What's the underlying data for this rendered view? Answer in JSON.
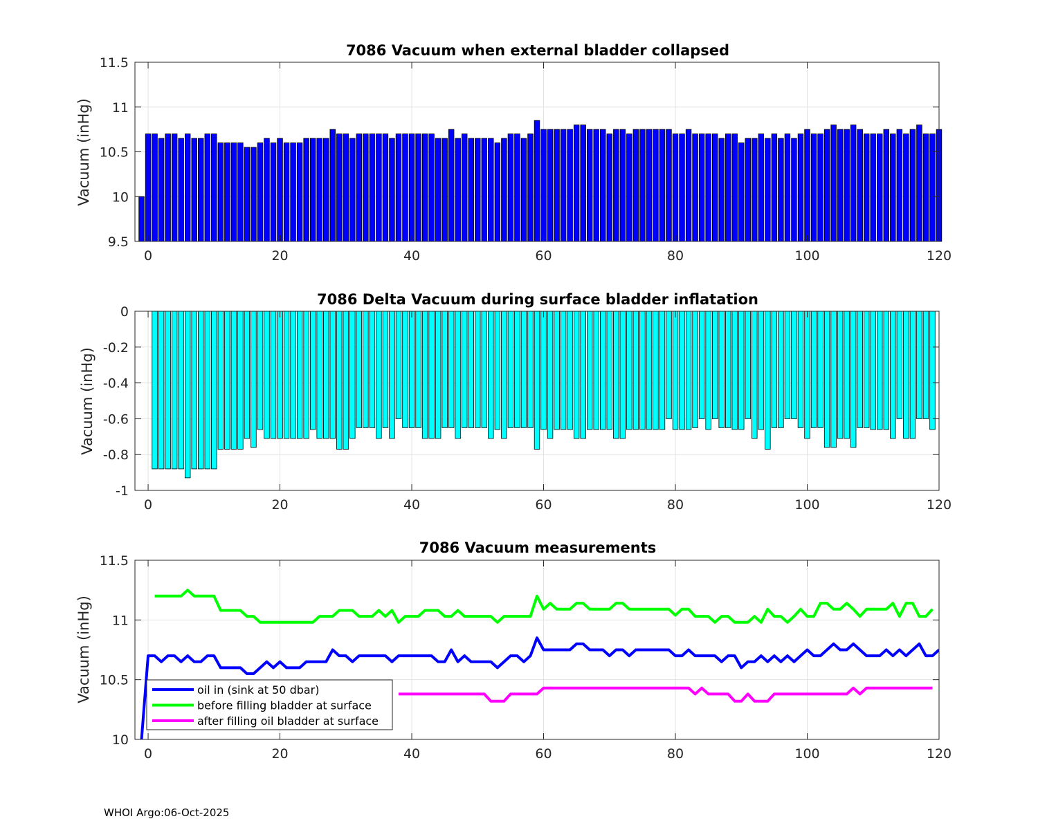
{
  "footer": "WHOI Argo:06-Oct-2025",
  "colors": {
    "bar1": "#0000ff",
    "bar2": "#00ffff",
    "oil_in": "#0000ff",
    "before": "#00ff00",
    "after": "#ff00ff",
    "grid": "#e3e3e3"
  },
  "chart_data": [
    {
      "type": "bar",
      "title": "7086 Vacuum when external bladder collapsed",
      "xlabel": "",
      "ylabel": "Vacuum (inHg)",
      "xlim": [
        -2,
        120
      ],
      "ylim": [
        9.5,
        11.5
      ],
      "xticks": [
        0,
        20,
        40,
        60,
        80,
        100,
        120
      ],
      "yticks": [
        9.5,
        10,
        10.5,
        11,
        11.5
      ],
      "ytick_labels": [
        "9.5",
        "10",
        "10.5",
        "11",
        "11.5"
      ],
      "x_start": -1,
      "values": [
        10.0,
        10.7,
        10.7,
        10.65,
        10.7,
        10.7,
        10.65,
        10.7,
        10.65,
        10.65,
        10.7,
        10.7,
        10.6,
        10.6,
        10.6,
        10.6,
        10.55,
        10.55,
        10.6,
        10.65,
        10.6,
        10.65,
        10.6,
        10.6,
        10.6,
        10.65,
        10.65,
        10.65,
        10.65,
        10.75,
        10.7,
        10.7,
        10.65,
        10.7,
        10.7,
        10.7,
        10.7,
        10.7,
        10.65,
        10.7,
        10.7,
        10.7,
        10.7,
        10.7,
        10.7,
        10.65,
        10.65,
        10.75,
        10.65,
        10.7,
        10.65,
        10.65,
        10.65,
        10.65,
        10.6,
        10.65,
        10.7,
        10.7,
        10.65,
        10.7,
        10.85,
        10.75,
        10.75,
        10.75,
        10.75,
        10.75,
        10.8,
        10.8,
        10.75,
        10.75,
        10.75,
        10.7,
        10.75,
        10.75,
        10.7,
        10.75,
        10.75,
        10.75,
        10.75,
        10.75,
        10.75,
        10.7,
        10.7,
        10.75,
        10.7,
        10.7,
        10.7,
        10.7,
        10.65,
        10.7,
        10.7,
        10.6,
        10.65,
        10.65,
        10.7,
        10.65,
        10.7,
        10.65,
        10.7,
        10.65,
        10.7,
        10.75,
        10.7,
        10.7,
        10.75,
        10.8,
        10.75,
        10.75,
        10.8,
        10.75,
        10.7,
        10.7,
        10.7,
        10.75,
        10.7,
        10.75,
        10.7,
        10.75,
        10.8,
        10.7,
        10.7,
        10.75
      ]
    },
    {
      "type": "bar",
      "title": "7086 Delta Vacuum during surface bladder inflatation",
      "xlabel": "",
      "ylabel": "Vacuum (inHg)",
      "xlim": [
        -2,
        120
      ],
      "ylim": [
        -1,
        0
      ],
      "xticks": [
        0,
        20,
        40,
        60,
        80,
        100,
        120
      ],
      "yticks": [
        -1,
        -0.8,
        -0.6,
        -0.4,
        -0.2,
        0
      ],
      "ytick_labels": [
        "-1",
        "-0.8",
        "-0.6",
        "-0.4",
        "-0.2",
        "0"
      ],
      "x_start": 1,
      "values": [
        -0.88,
        -0.88,
        -0.88,
        -0.88,
        -0.88,
        -0.93,
        -0.88,
        -0.88,
        -0.88,
        -0.88,
        -0.77,
        -0.77,
        -0.77,
        -0.77,
        -0.71,
        -0.76,
        -0.66,
        -0.71,
        -0.71,
        -0.71,
        -0.71,
        -0.71,
        -0.71,
        -0.71,
        -0.66,
        -0.71,
        -0.71,
        -0.71,
        -0.77,
        -0.77,
        -0.71,
        -0.65,
        -0.65,
        -0.65,
        -0.71,
        -0.65,
        -0.71,
        -0.6,
        -0.65,
        -0.65,
        -0.65,
        -0.71,
        -0.71,
        -0.71,
        -0.65,
        -0.65,
        -0.71,
        -0.65,
        -0.65,
        -0.65,
        -0.65,
        -0.71,
        -0.66,
        -0.71,
        -0.65,
        -0.65,
        -0.65,
        -0.65,
        -0.77,
        -0.66,
        -0.71,
        -0.66,
        -0.66,
        -0.66,
        -0.71,
        -0.71,
        -0.66,
        -0.66,
        -0.66,
        -0.66,
        -0.71,
        -0.71,
        -0.66,
        -0.66,
        -0.66,
        -0.66,
        -0.66,
        -0.66,
        -0.6,
        -0.66,
        -0.66,
        -0.66,
        -0.65,
        -0.6,
        -0.66,
        -0.6,
        -0.65,
        -0.65,
        -0.66,
        -0.66,
        -0.6,
        -0.71,
        -0.66,
        -0.77,
        -0.65,
        -0.65,
        -0.6,
        -0.6,
        -0.65,
        -0.71,
        -0.65,
        -0.65,
        -0.76,
        -0.76,
        -0.71,
        -0.71,
        -0.76,
        -0.65,
        -0.65,
        -0.66,
        -0.66,
        -0.66,
        -0.71,
        -0.6,
        -0.71,
        -0.71,
        -0.6,
        -0.6,
        -0.66
      ]
    },
    {
      "type": "line",
      "title": "7086 Vacuum measurements",
      "xlabel": "",
      "ylabel": "Vacuum (inHg)",
      "xlim": [
        -2,
        120
      ],
      "ylim": [
        10,
        11.5
      ],
      "xticks": [
        0,
        20,
        40,
        60,
        80,
        100,
        120
      ],
      "yticks": [
        10,
        10.5,
        11,
        11.5
      ],
      "ytick_labels": [
        "10",
        "10.5",
        "11",
        "11.5"
      ],
      "legend_position": "bottom-left",
      "series": [
        {
          "name": "oil in (sink at 50 dbar)",
          "x_start": -1,
          "values": [
            10.0,
            10.7,
            10.7,
            10.65,
            10.7,
            10.7,
            10.65,
            10.7,
            10.65,
            10.65,
            10.7,
            10.7,
            10.6,
            10.6,
            10.6,
            10.6,
            10.55,
            10.55,
            10.6,
            10.65,
            10.6,
            10.65,
            10.6,
            10.6,
            10.6,
            10.65,
            10.65,
            10.65,
            10.65,
            10.75,
            10.7,
            10.7,
            10.65,
            10.7,
            10.7,
            10.7,
            10.7,
            10.7,
            10.65,
            10.7,
            10.7,
            10.7,
            10.7,
            10.7,
            10.7,
            10.65,
            10.65,
            10.75,
            10.65,
            10.7,
            10.65,
            10.65,
            10.65,
            10.65,
            10.6,
            10.65,
            10.7,
            10.7,
            10.65,
            10.7,
            10.85,
            10.75,
            10.75,
            10.75,
            10.75,
            10.75,
            10.8,
            10.8,
            10.75,
            10.75,
            10.75,
            10.7,
            10.75,
            10.75,
            10.7,
            10.75,
            10.75,
            10.75,
            10.75,
            10.75,
            10.75,
            10.7,
            10.7,
            10.75,
            10.7,
            10.7,
            10.7,
            10.7,
            10.65,
            10.7,
            10.7,
            10.6,
            10.65,
            10.65,
            10.7,
            10.65,
            10.7,
            10.65,
            10.7,
            10.65,
            10.7,
            10.75,
            10.7,
            10.7,
            10.75,
            10.8,
            10.75,
            10.75,
            10.8,
            10.75,
            10.7,
            10.7,
            10.7,
            10.75,
            10.7,
            10.75,
            10.7,
            10.75,
            10.8,
            10.7,
            10.7,
            10.75
          ]
        },
        {
          "name": "before filling bladder at surface",
          "x_start": 1,
          "values": [
            11.2,
            11.2,
            11.2,
            11.2,
            11.2,
            11.25,
            11.2,
            11.2,
            11.2,
            11.2,
            11.08,
            11.08,
            11.08,
            11.08,
            11.03,
            11.03,
            10.98,
            10.98,
            10.98,
            10.98,
            10.98,
            10.98,
            10.98,
            10.98,
            10.98,
            11.03,
            11.03,
            11.03,
            11.08,
            11.08,
            11.08,
            11.03,
            11.03,
            11.03,
            11.08,
            11.03,
            11.08,
            10.98,
            11.03,
            11.03,
            11.03,
            11.08,
            11.08,
            11.08,
            11.03,
            11.03,
            11.08,
            11.03,
            11.03,
            11.03,
            11.03,
            11.03,
            10.98,
            11.03,
            11.03,
            11.03,
            11.03,
            11.03,
            11.2,
            11.09,
            11.14,
            11.09,
            11.09,
            11.09,
            11.14,
            11.14,
            11.09,
            11.09,
            11.09,
            11.09,
            11.14,
            11.14,
            11.09,
            11.09,
            11.09,
            11.09,
            11.09,
            11.09,
            11.09,
            11.04,
            11.09,
            11.09,
            11.03,
            11.03,
            11.03,
            10.98,
            11.03,
            11.03,
            10.98,
            10.98,
            10.98,
            11.03,
            10.98,
            11.09,
            11.03,
            11.03,
            10.98,
            11.03,
            11.09,
            11.03,
            11.03,
            11.14,
            11.14,
            11.09,
            11.09,
            11.14,
            11.09,
            11.03,
            11.09,
            11.09,
            11.09,
            11.09,
            11.14,
            11.03,
            11.14,
            11.14,
            11.03,
            11.03,
            11.09
          ]
        },
        {
          "name": "after filling oil bladder at surface",
          "x_start": 38,
          "values": [
            10.38,
            10.38,
            10.38,
            10.38,
            10.38,
            10.38,
            10.38,
            10.38,
            10.38,
            10.38,
            10.38,
            10.38,
            10.38,
            10.38,
            10.32,
            10.32,
            10.32,
            10.38,
            10.38,
            10.38,
            10.38,
            10.38,
            10.43,
            10.43,
            10.43,
            10.43,
            10.43,
            10.43,
            10.43,
            10.43,
            10.43,
            10.43,
            10.43,
            10.43,
            10.43,
            10.43,
            10.43,
            10.43,
            10.43,
            10.43,
            10.43,
            10.43,
            10.43,
            10.43,
            10.43,
            10.38,
            10.43,
            10.38,
            10.38,
            10.38,
            10.38,
            10.32,
            10.32,
            10.38,
            10.32,
            10.32,
            10.32,
            10.38,
            10.38,
            10.38,
            10.38,
            10.38,
            10.38,
            10.38,
            10.38,
            10.38,
            10.38,
            10.38,
            10.38,
            10.43,
            10.38,
            10.43,
            10.43,
            10.43,
            10.43,
            10.43,
            10.43,
            10.43,
            10.43,
            10.43,
            10.43,
            10.43
          ]
        }
      ]
    }
  ]
}
